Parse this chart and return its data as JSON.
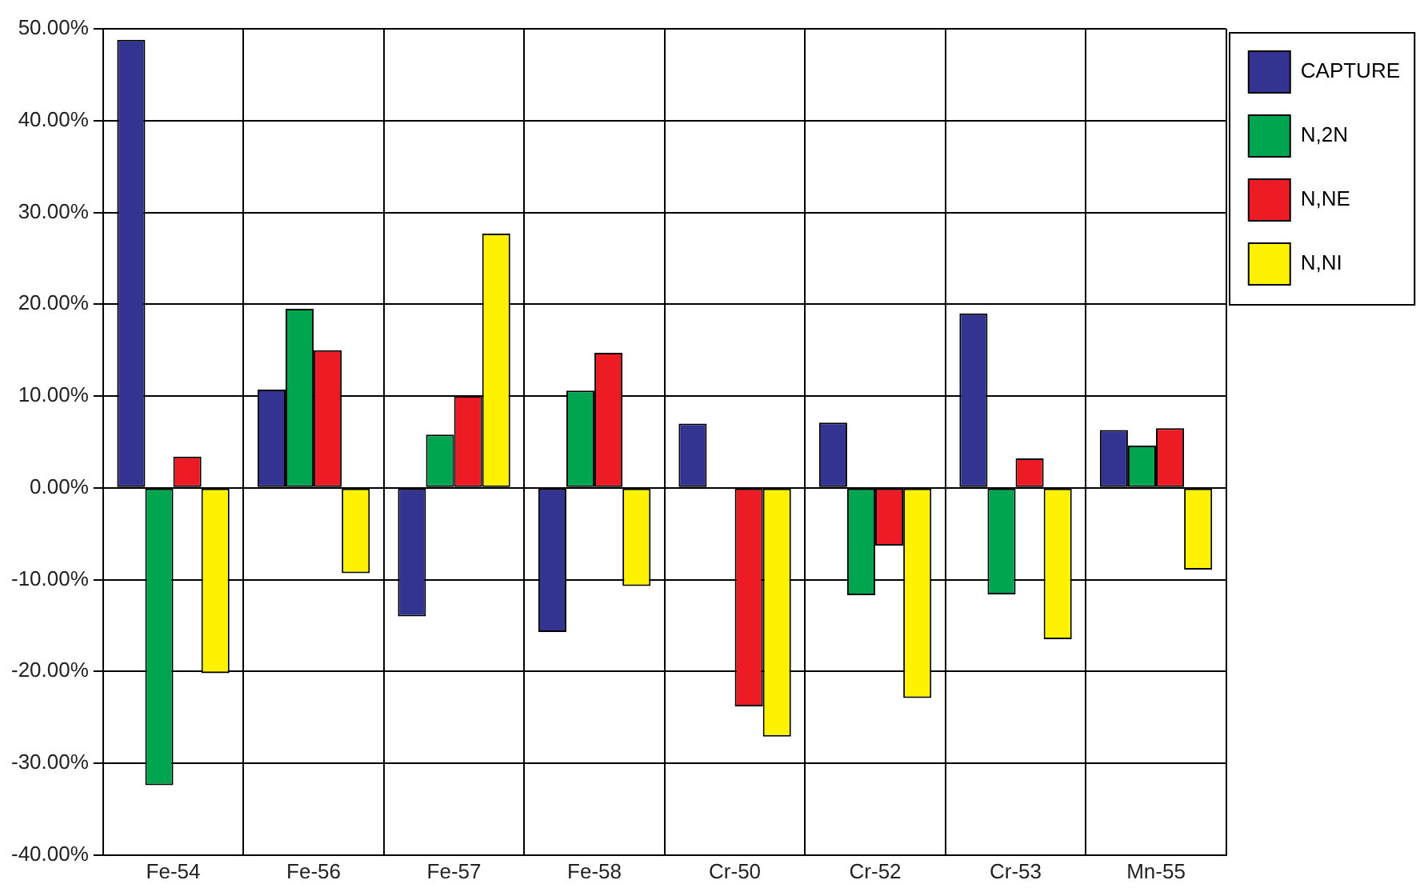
{
  "chart_data": {
    "type": "bar",
    "categories": [
      "Fe-54",
      "Fe-56",
      "Fe-57",
      "Fe-58",
      "Cr-50",
      "Cr-52",
      "Cr-53",
      "Mn-55"
    ],
    "series": [
      {
        "name": "CAPTURE",
        "color": "#333392",
        "values": [
          48.8,
          10.7,
          -14.0,
          -15.7,
          7.0,
          7.1,
          19.0,
          6.3
        ]
      },
      {
        "name": "N,2N",
        "color": "#00a550",
        "values": [
          -32.4,
          19.5,
          5.8,
          10.6,
          null,
          -11.7,
          -11.6,
          4.6
        ]
      },
      {
        "name": "N,NE",
        "color": "#ed1c24",
        "values": [
          3.4,
          15.0,
          10.0,
          14.7,
          -23.8,
          -6.3,
          3.2,
          6.5
        ]
      },
      {
        "name": "N,NI",
        "color": "#fff200",
        "values": [
          -20.2,
          -9.3,
          27.7,
          -10.7,
          -27.1,
          -22.9,
          -16.5,
          -8.9
        ]
      }
    ],
    "ylim": [
      -40,
      50
    ],
    "yticks": [
      {
        "value": -40,
        "label": "-40.00%"
      },
      {
        "value": -30,
        "label": "-30.00%"
      },
      {
        "value": -20,
        "label": "-20.00%"
      },
      {
        "value": -10,
        "label": "-10.00%"
      },
      {
        "value": 0,
        "label": "0.00%"
      },
      {
        "value": 10,
        "label": "10.00%"
      },
      {
        "value": 20,
        "label": "20.00%"
      },
      {
        "value": 30,
        "label": "30.00%"
      },
      {
        "value": 40,
        "label": "40.00%"
      },
      {
        "value": 50,
        "label": "50.00%"
      }
    ],
    "grid": true,
    "legend": "top right"
  }
}
